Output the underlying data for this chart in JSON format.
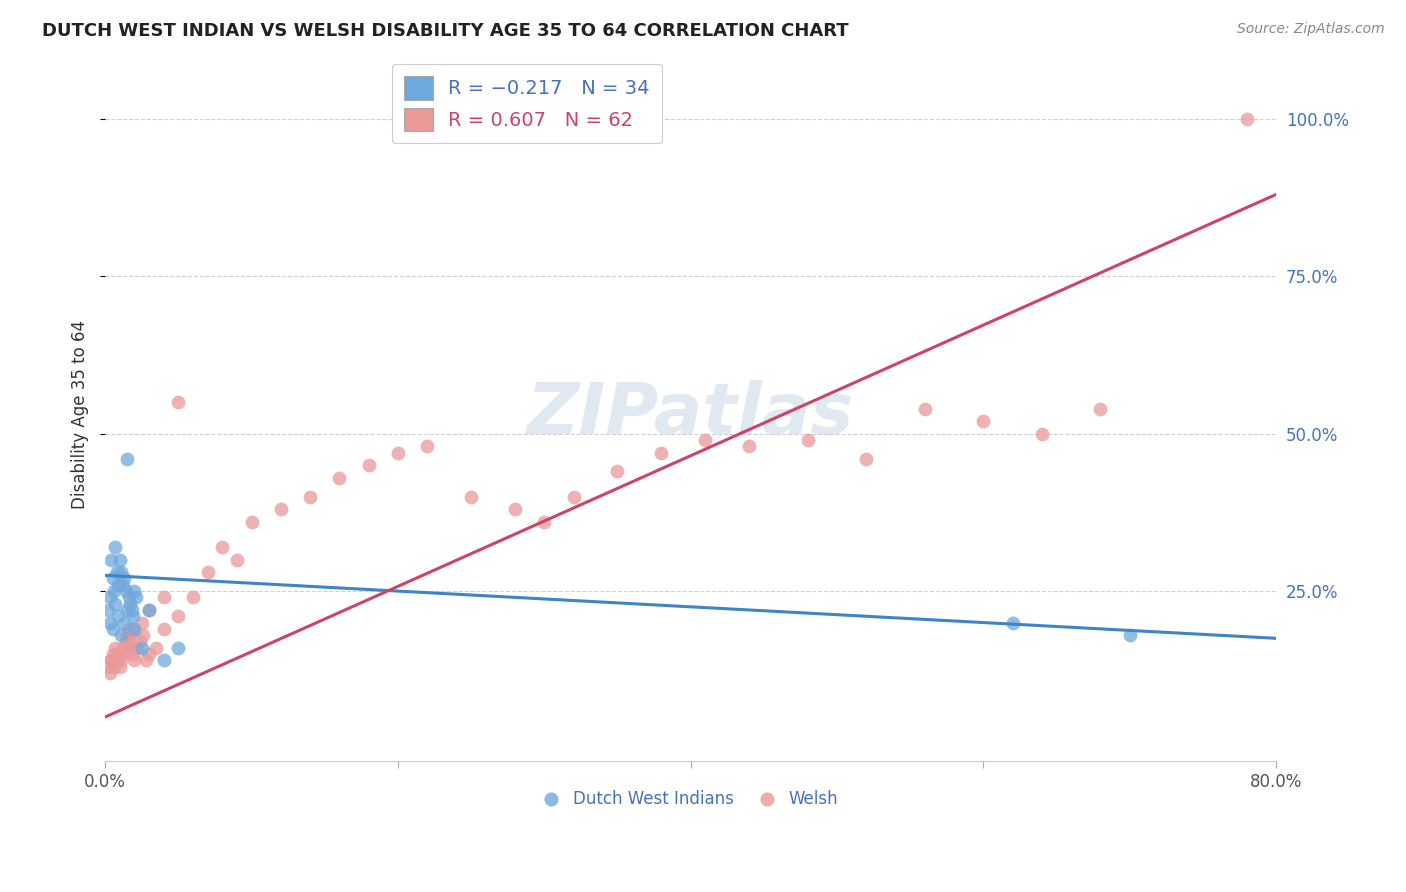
{
  "title": "DUTCH WEST INDIAN VS WELSH DISABILITY AGE 35 TO 64 CORRELATION CHART",
  "source": "Source: ZipAtlas.com",
  "ylabel": "Disability Age 35 to 64",
  "xlim": [
    0.0,
    0.8
  ],
  "ylim": [
    -0.02,
    1.08
  ],
  "xticks": [
    0.0,
    0.2,
    0.4,
    0.6,
    0.8
  ],
  "xticklabels": [
    "0.0%",
    "",
    "",
    "",
    "80.0%"
  ],
  "ytick_positions": [
    0.25,
    0.5,
    0.75,
    1.0
  ],
  "ytick_labels": [
    "25.0%",
    "50.0%",
    "75.0%",
    "100.0%"
  ],
  "legend_labels_bottom": [
    "Dutch West Indians",
    "Welsh"
  ],
  "blue_color": "#6fa8dc",
  "pink_color": "#ea9999",
  "blue_line_color": "#3d85c8",
  "pink_line_color": "#cc4466",
  "blue_scatter_x": [
    0.002,
    0.003,
    0.004,
    0.005,
    0.006,
    0.007,
    0.008,
    0.009,
    0.01,
    0.011,
    0.012,
    0.013,
    0.014,
    0.015,
    0.016,
    0.017,
    0.018,
    0.019,
    0.02,
    0.021,
    0.003,
    0.005,
    0.007,
    0.009,
    0.011,
    0.013,
    0.015,
    0.02,
    0.025,
    0.03,
    0.04,
    0.05,
    0.62,
    0.7
  ],
  "blue_scatter_y": [
    0.22,
    0.24,
    0.3,
    0.27,
    0.25,
    0.32,
    0.28,
    0.26,
    0.3,
    0.28,
    0.26,
    0.27,
    0.25,
    0.46,
    0.24,
    0.23,
    0.22,
    0.21,
    0.25,
    0.24,
    0.2,
    0.19,
    0.23,
    0.21,
    0.18,
    0.2,
    0.22,
    0.19,
    0.16,
    0.22,
    0.14,
    0.16,
    0.2,
    0.18
  ],
  "pink_scatter_x": [
    0.002,
    0.003,
    0.004,
    0.005,
    0.006,
    0.007,
    0.008,
    0.009,
    0.01,
    0.011,
    0.012,
    0.013,
    0.014,
    0.015,
    0.016,
    0.017,
    0.018,
    0.019,
    0.02,
    0.022,
    0.024,
    0.026,
    0.028,
    0.03,
    0.035,
    0.04,
    0.05,
    0.06,
    0.07,
    0.08,
    0.09,
    0.1,
    0.12,
    0.14,
    0.16,
    0.18,
    0.2,
    0.22,
    0.25,
    0.28,
    0.3,
    0.32,
    0.35,
    0.38,
    0.41,
    0.44,
    0.48,
    0.52,
    0.56,
    0.6,
    0.64,
    0.68,
    0.004,
    0.008,
    0.012,
    0.016,
    0.02,
    0.025,
    0.03,
    0.04,
    0.78,
    0.05
  ],
  "pink_scatter_y": [
    0.13,
    0.12,
    0.14,
    0.15,
    0.13,
    0.16,
    0.14,
    0.15,
    0.13,
    0.14,
    0.15,
    0.16,
    0.17,
    0.18,
    0.19,
    0.17,
    0.16,
    0.15,
    0.14,
    0.16,
    0.17,
    0.18,
    0.14,
    0.15,
    0.16,
    0.19,
    0.21,
    0.24,
    0.28,
    0.32,
    0.3,
    0.36,
    0.38,
    0.4,
    0.43,
    0.45,
    0.47,
    0.48,
    0.4,
    0.38,
    0.36,
    0.4,
    0.44,
    0.47,
    0.49,
    0.48,
    0.49,
    0.46,
    0.54,
    0.52,
    0.5,
    0.54,
    0.14,
    0.15,
    0.16,
    0.18,
    0.19,
    0.2,
    0.22,
    0.24,
    1.0,
    0.55
  ],
  "blue_line_x": [
    0.0,
    0.8
  ],
  "blue_line_y": [
    0.275,
    0.175
  ],
  "pink_line_x": [
    0.0,
    0.8
  ],
  "pink_line_y": [
    0.05,
    0.88
  ],
  "watermark": "ZIPatlas",
  "background_color": "#ffffff",
  "grid_color": "#d0d0d0"
}
